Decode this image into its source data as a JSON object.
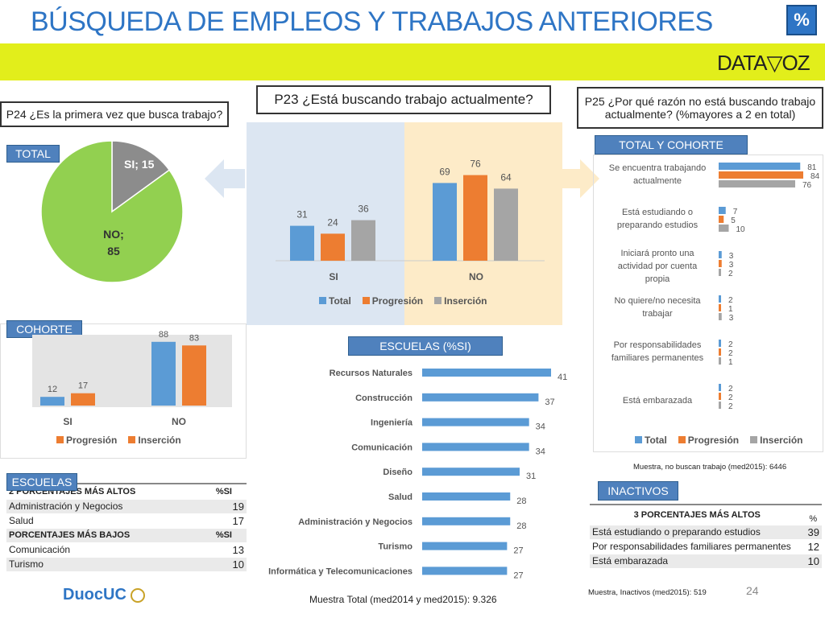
{
  "header": {
    "title": "BÚSQUEDA DE EMPLEOS Y TRABAJOS ANTERIORES",
    "pct_badge": "%",
    "logo_text": "DATA▽OZ",
    "page_number": "24",
    "brand": "DuocUC"
  },
  "colors": {
    "total": "#5b9bd5",
    "progresion": "#ed7d31",
    "insercion": "#a5a5a5",
    "pie_si": "#8c8c8c",
    "pie_no": "#92d050",
    "band": "#e2ee1b",
    "tag": "#4f81bd"
  },
  "p24": {
    "question": "P24 ¿Es la primera vez que busca trabajo?",
    "tag": "TOTAL",
    "si_label": "SI; 15",
    "no_label_1": "NO;",
    "no_label_2": "85"
  },
  "cohorte": {
    "tag": "COHORTE",
    "legend": [
      "Progresión",
      "Inserción"
    ]
  },
  "p23": {
    "question": "P23 ¿Está buscando trabajo actualmente?",
    "legend": [
      "Total",
      "Progresión",
      "Inserción"
    ]
  },
  "escuelas_chart": {
    "tag": "ESCUELAS (%SI)"
  },
  "escuelas_table": {
    "tag": "ESCUELAS",
    "high_header": "2 PORCENTAJES MÁS ALTOS",
    "low_header": "PORCENTAJES MÁS BAJOS",
    "col": "%SI",
    "high": [
      {
        "name": "Administración y Negocios",
        "value": "19"
      },
      {
        "name": "Salud",
        "value": "17"
      }
    ],
    "low": [
      {
        "name": "Comunicación",
        "value": "13"
      },
      {
        "name": "Turismo",
        "value": "10"
      }
    ]
  },
  "p25": {
    "question_1": "P25 ¿Por qué razón no está buscando trabajo",
    "question_2": "actualmente? (%mayores a 2 en total)",
    "tag": "TOTAL Y COHORTE",
    "legend": [
      "Total",
      "Progresión",
      "Inserción"
    ],
    "note": "Muestra, no buscan trabajo (med2015): 6446"
  },
  "inactivos": {
    "tag": "INACTIVOS",
    "header": "3 PORCENTAJES MÁS ALTOS",
    "col": "%",
    "rows": [
      {
        "name": "Está estudiando o preparando estudios",
        "value": "39"
      },
      {
        "name": "Por responsabilidades familiares permanentes",
        "value": "12"
      },
      {
        "name": "Está embarazada",
        "value": "10"
      }
    ],
    "note": "Muestra, Inactivos (med2015): 519"
  },
  "footer": {
    "sample": "Muestra Total (med2014 y med2015): 9.326"
  },
  "chart_data": [
    {
      "type": "pie",
      "title": "",
      "slices": [
        {
          "label": "SI",
          "value": 15
        },
        {
          "label": "NO",
          "value": 85
        }
      ]
    },
    {
      "type": "bar",
      "categories": [
        "SI",
        "NO"
      ],
      "series": [
        {
          "name": "Progresión",
          "values": [
            12,
            88
          ]
        },
        {
          "name": "Inserción",
          "values": [
            17,
            83
          ]
        }
      ],
      "ylim": [
        0,
        100
      ]
    },
    {
      "type": "bar",
      "categories": [
        "SI",
        "NO"
      ],
      "series": [
        {
          "name": "Total",
          "values": [
            31,
            69
          ]
        },
        {
          "name": "Progresión",
          "values": [
            24,
            76
          ]
        },
        {
          "name": "Inserción",
          "values": [
            36,
            64
          ]
        }
      ],
      "ylim": [
        0,
        100
      ]
    },
    {
      "type": "bar",
      "orientation": "horizontal",
      "categories": [
        "Recursos Naturales",
        "Construcción",
        "Ingeniería",
        "Comunicación",
        "Diseño",
        "Salud",
        "Administración y Negocios",
        "Turismo",
        "Informática y Telecomunicaciones"
      ],
      "values": [
        41,
        37,
        34,
        34,
        31,
        28,
        28,
        27,
        27
      ],
      "xlim": [
        0,
        50
      ]
    },
    {
      "type": "bar",
      "orientation": "horizontal",
      "categories": [
        "Se encuentra trabajando actualmente",
        "Está estudiando o preparando estudios",
        "Iniciará pronto una actividad por cuenta propia",
        "No quiere/no necesita trabajar",
        "Por responsabilidades familiares permanentes",
        "Está embarazada"
      ],
      "series": [
        {
          "name": "Total",
          "values": [
            81,
            7,
            3,
            2,
            2,
            2
          ]
        },
        {
          "name": "Progresión",
          "values": [
            84,
            5,
            3,
            1,
            2,
            2
          ]
        },
        {
          "name": "Inserción",
          "values": [
            76,
            10,
            2,
            3,
            1,
            2
          ]
        }
      ],
      "xlim": [
        0,
        100
      ]
    }
  ]
}
